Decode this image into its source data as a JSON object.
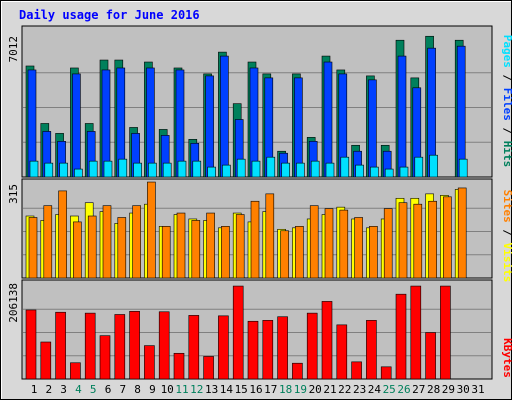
{
  "title": "Daily usage for June 2016",
  "colors": {
    "background": "#d8d8d8",
    "plot": "#c0c0c0",
    "title": "#0000ff",
    "hits": "#00805c",
    "files": "#0040ff",
    "pages": "#00e0ff",
    "visits": "#ffff00",
    "sites": "#ff8000",
    "kbytes": "#ff0000",
    "weekday_label": "#000000",
    "weekend_label": "#00805c",
    "grid": "#808080"
  },
  "panels": {
    "hits": {
      "max_label": "7012",
      "legend": [
        {
          "text": "Pages",
          "color": "#00e0ff"
        },
        {
          "text": " / ",
          "color": "#000000"
        },
        {
          "text": "Files",
          "color": "#0040ff"
        },
        {
          "text": " / ",
          "color": "#000000"
        },
        {
          "text": "Hits",
          "color": "#00805c"
        }
      ]
    },
    "visits": {
      "max_label": "315",
      "legend": [
        {
          "text": "Sites",
          "color": "#ff8000"
        },
        {
          "text": " / ",
          "color": "#000000"
        },
        {
          "text": "Visits",
          "color": "#ffff00"
        }
      ]
    },
    "kbytes": {
      "max_label": "206138",
      "legend": [
        {
          "text": "KBytes",
          "color": "#ff0000"
        }
      ]
    }
  },
  "chart_data": {
    "type": "bar",
    "title": "Daily usage for June 2016",
    "categories": [
      "1",
      "2",
      "3",
      "4",
      "5",
      "6",
      "7",
      "8",
      "9",
      "10",
      "11",
      "12",
      "13",
      "14",
      "15",
      "16",
      "17",
      "18",
      "19",
      "20",
      "21",
      "22",
      "23",
      "24",
      "25",
      "26",
      "27",
      "28",
      "29",
      "30",
      "31"
    ],
    "weekend_days": [
      "4",
      "5",
      "11",
      "12",
      "18",
      "19",
      "25",
      "26"
    ],
    "panels": [
      {
        "name": "hits_files_pages",
        "ymax": 7012,
        "series": [
          {
            "name": "Hits",
            "values": [
              5600,
              2700,
              2200,
              5500,
              2700,
              5900,
              5900,
              2500,
              5800,
              2400,
              5500,
              1900,
              5200,
              6300,
              3700,
              5800,
              5200,
              1300,
              5200,
              2000,
              6100,
              5400,
              1600,
              5100,
              1600,
              6900,
              5000,
              7100,
              0,
              6900,
              0
            ]
          },
          {
            "name": "Files",
            "values": [
              5400,
              2300,
              1800,
              5200,
              2300,
              5400,
              5500,
              2200,
              5500,
              2100,
              5400,
              1700,
              5100,
              6100,
              2900,
              5500,
              5000,
              1200,
              5000,
              1800,
              5800,
              5200,
              1300,
              4900,
              1300,
              6100,
              4500,
              6500,
              0,
              6600,
              0
            ]
          },
          {
            "name": "Pages",
            "values": [
              800,
              700,
              700,
              400,
              800,
              800,
              900,
              700,
              700,
              700,
              800,
              800,
              500,
              600,
              900,
              800,
              1000,
              700,
              700,
              800,
              700,
              1000,
              600,
              500,
              400,
              500,
              1000,
              1100,
              0,
              900,
              0
            ]
          }
        ]
      },
      {
        "name": "visits_sites",
        "ymax": 315,
        "series": [
          {
            "name": "Visits",
            "values": [
              210,
              195,
              215,
              210,
              255,
              225,
              185,
              220,
              250,
              175,
              215,
              200,
              195,
              170,
              220,
              190,
              225,
              165,
              170,
              200,
              215,
              240,
              200,
              170,
              200,
              270,
              270,
              285,
              280,
              300,
              0
            ]
          },
          {
            "name": "Sites",
            "values": [
              205,
              245,
              295,
              190,
              210,
              245,
              205,
              245,
              325,
              175,
              220,
              195,
              220,
              175,
              215,
              260,
              285,
              160,
              175,
              245,
              235,
              230,
              205,
              175,
              235,
              255,
              250,
              260,
              275,
              305,
              0
            ]
          }
        ]
      },
      {
        "name": "kbytes",
        "ymax": 206138,
        "series": [
          {
            "name": "KBytes",
            "values": [
              153000,
              82000,
              148000,
              36000,
              146000,
              96000,
              143000,
              150000,
              74000,
              149000,
              57000,
              141000,
              50000,
              140000,
              206000,
              128000,
              130000,
              138000,
              35000,
              146000,
              172000,
              120000,
              38000,
              130000,
              27000,
              188000,
              206000,
              103000,
              206000,
              0,
              0
            ]
          }
        ]
      }
    ]
  }
}
